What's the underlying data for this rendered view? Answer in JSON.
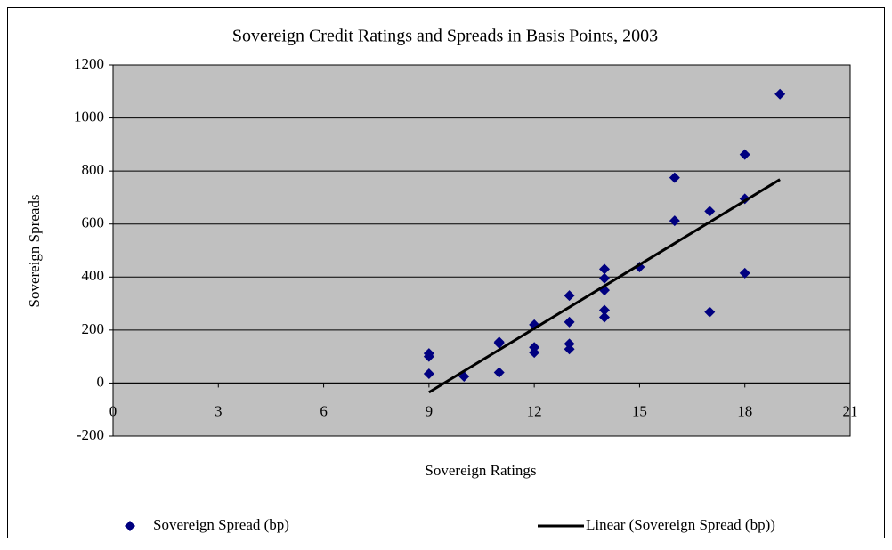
{
  "chart_data": {
    "type": "scatter",
    "title": "Sovereign Credit Ratings and Spreads in Basis Points, 2003",
    "x_label": "Sovereign Ratings",
    "y_label": "Sovereign Spreads",
    "series": [
      {
        "name": "Sovereign Spread (bp)",
        "color": "#000080",
        "x": [
          9,
          9,
          9,
          10,
          11,
          11,
          11,
          12,
          12,
          12,
          13,
          13,
          13,
          13,
          14,
          14,
          14,
          14,
          14,
          15,
          16,
          16,
          17,
          17,
          18,
          18,
          18,
          19
        ],
        "values": [
          112,
          100,
          35,
          25,
          155,
          150,
          40,
          220,
          135,
          115,
          330,
          230,
          148,
          128,
          430,
          395,
          350,
          275,
          248,
          438,
          775,
          612,
          648,
          268,
          862,
          695,
          415,
          1090
        ]
      }
    ],
    "trendline": {
      "name": "Linear (Sovereign Spread (bp))",
      "color": "#000000",
      "x": [
        9,
        19
      ],
      "values": [
        -35,
        768
      ]
    },
    "xlim": [
      0,
      21
    ],
    "xticks": [
      0,
      3,
      6,
      9,
      12,
      15,
      18,
      21
    ],
    "ylim": [
      -200,
      1200
    ],
    "yticks": [
      -200,
      0,
      200,
      400,
      600,
      800,
      1000,
      1200
    ],
    "grid": true,
    "plot_background": "#c0c0c0",
    "legend_position": "bottom"
  }
}
